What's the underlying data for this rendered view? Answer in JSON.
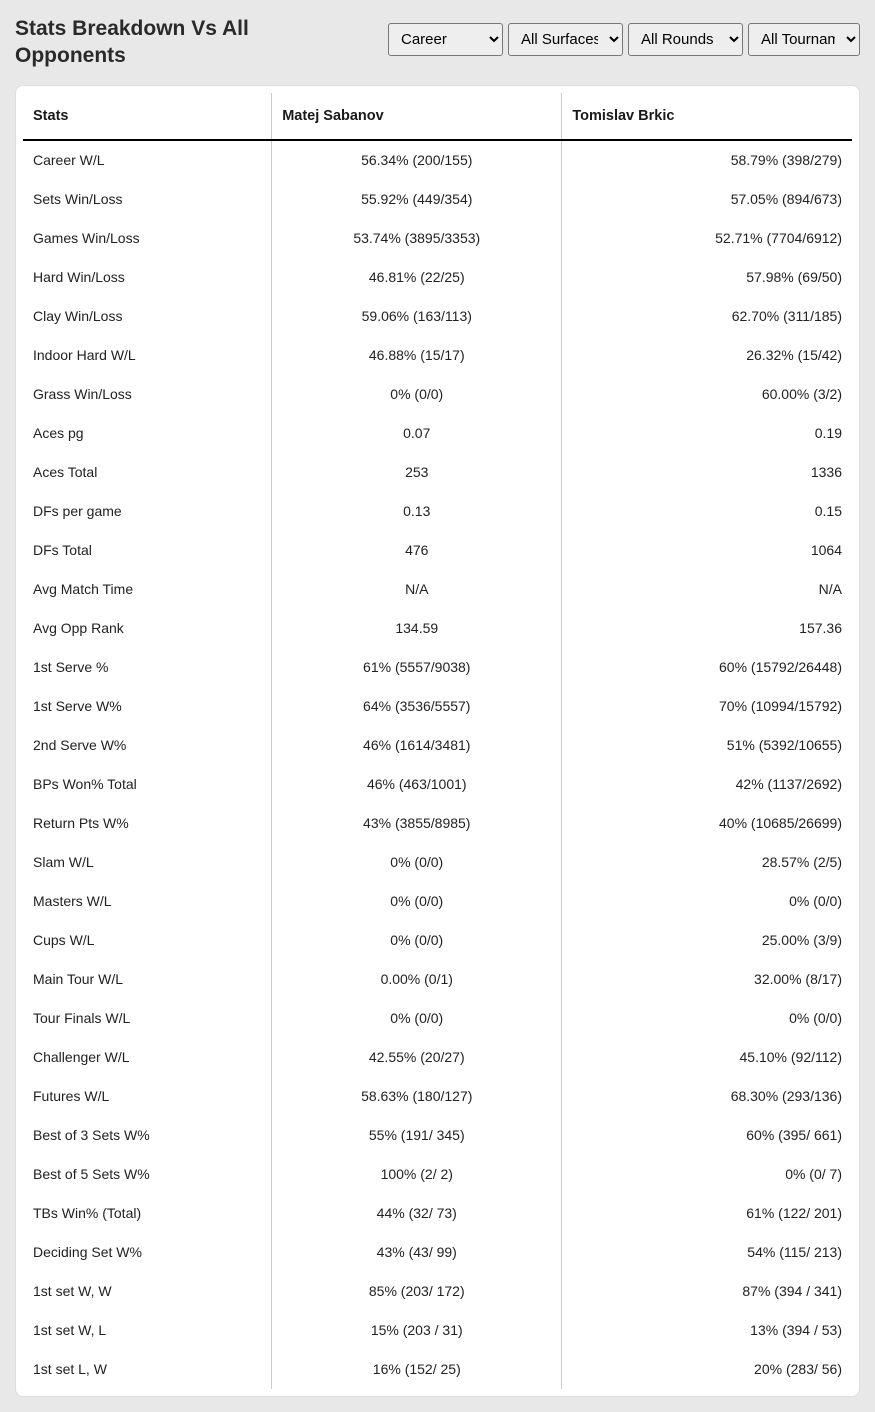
{
  "title": "Stats Breakdown Vs All Opponents",
  "filters": {
    "career": {
      "selected": "Career",
      "options": [
        "Career"
      ]
    },
    "surface": {
      "selected": "All Surfaces",
      "options": [
        "All Surfaces"
      ]
    },
    "rounds": {
      "selected": "All Rounds",
      "options": [
        "All Rounds"
      ]
    },
    "tournaments": {
      "selected": "All Tournaments",
      "options": [
        "All Tournaments"
      ]
    }
  },
  "table": {
    "columns": [
      "Stats",
      "Matej Sabanov",
      "Tomislav Brkic"
    ],
    "rows": [
      [
        "Career W/L",
        "56.34% (200/155)",
        "58.79% (398/279)"
      ],
      [
        "Sets Win/Loss",
        "55.92% (449/354)",
        "57.05% (894/673)"
      ],
      [
        "Games Win/Loss",
        "53.74% (3895/3353)",
        "52.71% (7704/6912)"
      ],
      [
        "Hard Win/Loss",
        "46.81% (22/25)",
        "57.98% (69/50)"
      ],
      [
        "Clay Win/Loss",
        "59.06% (163/113)",
        "62.70% (311/185)"
      ],
      [
        "Indoor Hard W/L",
        "46.88% (15/17)",
        "26.32% (15/42)"
      ],
      [
        "Grass Win/Loss",
        "0% (0/0)",
        "60.00% (3/2)"
      ],
      [
        "Aces pg",
        "0.07",
        "0.19"
      ],
      [
        "Aces Total",
        "253",
        "1336"
      ],
      [
        "DFs per game",
        "0.13",
        "0.15"
      ],
      [
        "DFs Total",
        "476",
        "1064"
      ],
      [
        "Avg Match Time",
        "N/A",
        "N/A"
      ],
      [
        "Avg Opp Rank",
        "134.59",
        "157.36"
      ],
      [
        "1st Serve %",
        "61% (5557/9038)",
        "60% (15792/26448)"
      ],
      [
        "1st Serve W%",
        "64% (3536/5557)",
        "70% (10994/15792)"
      ],
      [
        "2nd Serve W%",
        "46% (1614/3481)",
        "51% (5392/10655)"
      ],
      [
        "BPs Won% Total",
        "46% (463/1001)",
        "42% (1137/2692)"
      ],
      [
        "Return Pts W%",
        "43% (3855/8985)",
        "40% (10685/26699)"
      ],
      [
        "Slam W/L",
        "0% (0/0)",
        "28.57% (2/5)"
      ],
      [
        "Masters W/L",
        "0% (0/0)",
        "0% (0/0)"
      ],
      [
        "Cups W/L",
        "0% (0/0)",
        "25.00% (3/9)"
      ],
      [
        "Main Tour W/L",
        "0.00% (0/1)",
        "32.00% (8/17)"
      ],
      [
        "Tour Finals W/L",
        "0% (0/0)",
        "0% (0/0)"
      ],
      [
        "Challenger W/L",
        "42.55% (20/27)",
        "45.10% (92/112)"
      ],
      [
        "Futures W/L",
        "58.63% (180/127)",
        "68.30% (293/136)"
      ],
      [
        "Best of 3 Sets W%",
        "55% (191/ 345)",
        "60% (395/ 661)"
      ],
      [
        "Best of 5 Sets W%",
        "100% (2/ 2)",
        "0% (0/ 7)"
      ],
      [
        "TBs Win% (Total)",
        "44% (32/ 73)",
        "61% (122/ 201)"
      ],
      [
        "Deciding Set W%",
        "43% (43/ 99)",
        "54% (115/ 213)"
      ],
      [
        "1st set W, W",
        "85% (203/ 172)",
        "87% (394 / 341)"
      ],
      [
        "1st set W, L",
        "15% (203 / 31)",
        "13% (394 / 53)"
      ],
      [
        "1st set L, W",
        "16% (152/ 25)",
        "20% (283/ 56)"
      ]
    ]
  },
  "colors": {
    "page_bg": "#e8e8e8",
    "card_bg": "#ffffff",
    "text": "#1a1a1a",
    "border": "#cccccc",
    "header_border": "#000000"
  }
}
